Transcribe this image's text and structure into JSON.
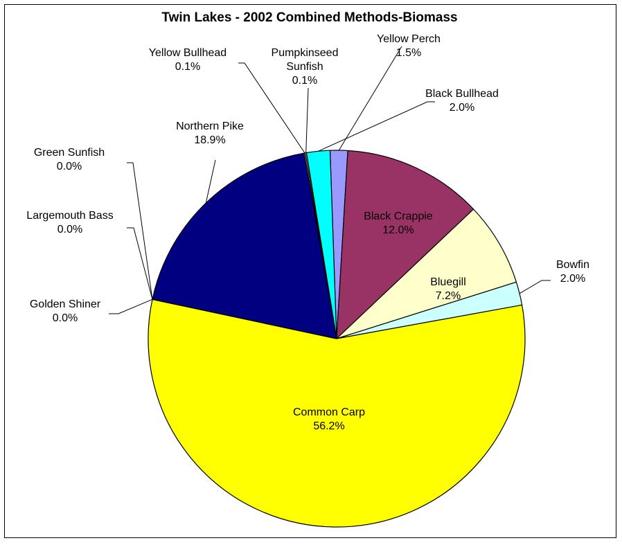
{
  "chart_data": {
    "type": "pie",
    "title": "Twin Lakes - 2002 Combined Methods-Biomass",
    "slices": [
      {
        "label": "Yellow Perch",
        "value_label": "1.5%",
        "value": 1.5,
        "color": "#9999FF"
      },
      {
        "label": "Black Crappie",
        "value_label": "12.0%",
        "value": 12.0,
        "color": "#993366"
      },
      {
        "label": "Bluegill",
        "value_label": "7.2%",
        "value": 7.2,
        "color": "#FFFFCC"
      },
      {
        "label": "Bowfin",
        "value_label": "2.0%",
        "value": 2.0,
        "color": "#CCFFFF"
      },
      {
        "label": "Common Carp",
        "value_label": "56.2%",
        "value": 56.2,
        "color": "#FFFF00"
      },
      {
        "label": "Golden Shiner",
        "value_label": "0.0%",
        "value": 0.0,
        "color": "#FFFFFF"
      },
      {
        "label": "Largemouth Bass",
        "value_label": "0.0%",
        "value": 0.0,
        "color": "#FFFFFF"
      },
      {
        "label": "Green Sunfish",
        "value_label": "0.0%",
        "value": 0.0,
        "color": "#FFFFFF"
      },
      {
        "label": "Northern Pike",
        "value_label": "18.9%",
        "value": 18.9,
        "color": "#000080"
      },
      {
        "label": "Yellow Bullhead",
        "value_label": "0.1%",
        "value": 0.1,
        "color": "#FFFFFF"
      },
      {
        "label": "Pumpkinseed Sunfish",
        "value_label": "0.1%",
        "value": 0.1,
        "color": "#FFFFFF"
      },
      {
        "label": "Black Bullhead",
        "value_label": "2.0%",
        "value": 2.0,
        "color": "#00FFFF"
      }
    ]
  }
}
